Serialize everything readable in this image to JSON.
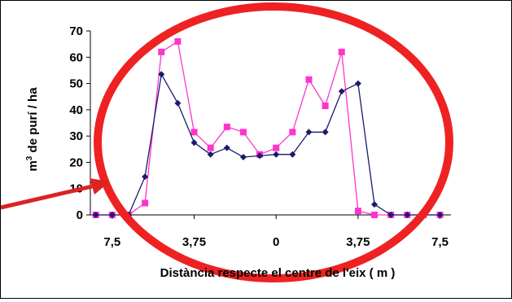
{
  "chart_data": {
    "type": "line",
    "title": "",
    "xlabel": "Distància respecte el centre de l'eix ( m )",
    "ylabel_parts": [
      "m",
      "3",
      " de purí / ha"
    ],
    "ylim": [
      0,
      70
    ],
    "yticks": [
      0,
      10,
      20,
      30,
      40,
      50,
      60,
      70
    ],
    "xticks": [
      {
        "label": "7,5",
        "x": -7.5
      },
      {
        "label": "3,75",
        "x": -3.75
      },
      {
        "label": "0",
        "x": 0
      },
      {
        "label": "3,75",
        "x": 3.75
      },
      {
        "label": "7,5",
        "x": 7.5
      }
    ],
    "xlim": [
      -8.5,
      8.0
    ],
    "grid": false,
    "legend": "none",
    "x": [
      -8.25,
      -7.5,
      -6.75,
      -6.0,
      -5.25,
      -4.5,
      -3.75,
      -3.0,
      -2.25,
      -1.5,
      -0.75,
      0.0,
      0.75,
      1.5,
      2.25,
      3.0,
      3.75,
      4.5,
      5.25,
      6.0,
      6.75,
      7.5
    ],
    "series": [
      {
        "color": "#1a1a6e",
        "marker": "diamond",
        "values": [
          0,
          0,
          0,
          14.5,
          53.5,
          42.5,
          27.5,
          23,
          25.5,
          22,
          22.5,
          23,
          23,
          31.5,
          31.5,
          47,
          50,
          4,
          0,
          0,
          0,
          0
        ]
      },
      {
        "color": "#ff33cc",
        "marker": "square",
        "values": [
          0,
          0,
          0,
          4.5,
          62,
          66,
          31.5,
          25.5,
          33.5,
          31.5,
          23,
          25.5,
          31.5,
          51.5,
          41.5,
          62,
          1.5,
          0,
          0,
          0,
          0,
          0
        ]
      }
    ],
    "annotations": [
      {
        "type": "ellipse",
        "color": "#ee2222"
      },
      {
        "type": "arrow",
        "color": "#dd2222"
      }
    ]
  }
}
